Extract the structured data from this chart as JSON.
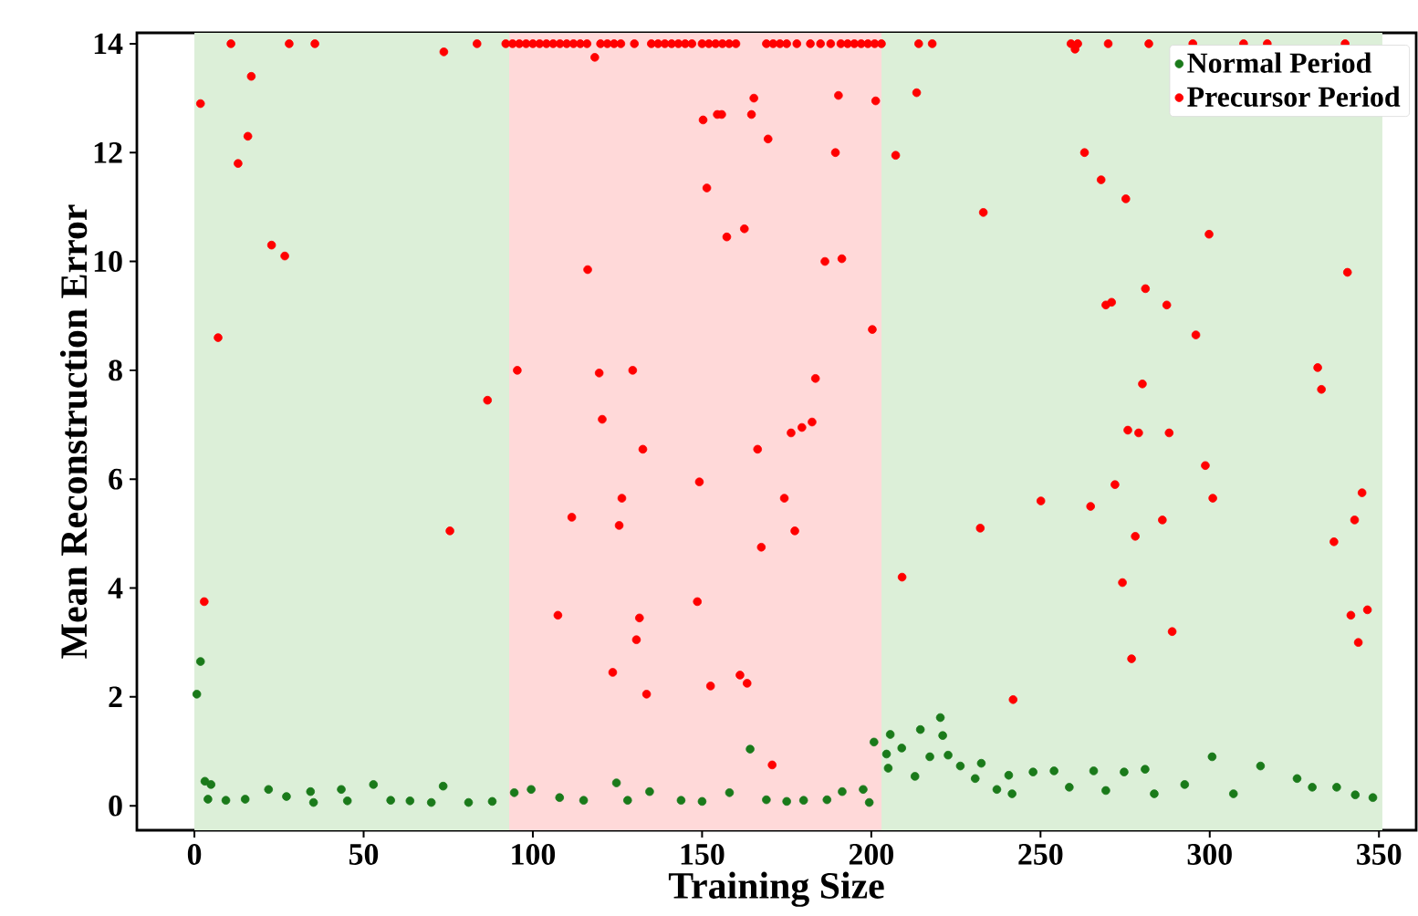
{
  "chart_data": {
    "type": "scatter",
    "xlabel": "Training Size",
    "ylabel": "Mean Reconstruction Error",
    "xlim": [
      -17,
      361
    ],
    "ylim": [
      -0.45,
      14.2
    ],
    "xticks": [
      0,
      50,
      100,
      150,
      200,
      250,
      300,
      350
    ],
    "yticks": [
      0,
      2,
      4,
      6,
      8,
      10,
      12,
      14
    ],
    "marker": "circle",
    "legend": "top right",
    "grid": false,
    "bands": [
      {
        "axis": "x",
        "from": 0,
        "to": 93,
        "color": "#dcefd8"
      },
      {
        "axis": "x",
        "from": 93,
        "to": 203,
        "color": "#ffd9d9"
      },
      {
        "axis": "x",
        "from": 203,
        "to": 351,
        "color": "#dcefd8"
      }
    ],
    "series": [
      {
        "name": "Normal Period",
        "color": "#1a7a1a",
        "x": [
          0.7,
          1.8,
          3.1,
          4,
          4.9,
          9.3,
          15,
          21.9,
          27.2,
          34.3,
          35.2,
          43.4,
          45.2,
          52.9,
          58,
          63.7,
          70,
          73.5,
          81,
          88,
          94.5,
          99.5,
          107.9,
          115,
          124.7,
          128,
          134.5,
          143.8,
          150,
          158.1,
          164.2,
          169,
          175,
          180,
          186.9,
          191.4,
          197.6,
          199.4,
          200.8,
          204.5,
          205,
          205.6,
          209,
          212.9,
          214.5,
          217.3,
          220.4,
          221.1,
          222.7,
          226.3,
          230.7,
          232.5,
          237.1,
          240.6,
          241.6,
          247.8,
          254,
          258.5,
          265.7,
          269.3,
          274.7,
          280.9,
          283.6,
          292.6,
          300.7,
          307,
          315,
          325.8,
          330.3,
          337.5,
          343,
          348.2
        ],
        "values": [
          2.05,
          2.65,
          0.45,
          0.12,
          0.39,
          0.1,
          0.12,
          0.3,
          0.17,
          0.26,
          0.06,
          0.3,
          0.09,
          0.39,
          0.1,
          0.09,
          0.06,
          0.36,
          0.06,
          0.08,
          0.24,
          0.3,
          0.15,
          0.1,
          0.42,
          0.1,
          0.26,
          0.1,
          0.08,
          0.24,
          1.04,
          0.11,
          0.08,
          0.1,
          0.11,
          0.26,
          0.3,
          0.06,
          1.17,
          0.95,
          0.69,
          1.31,
          1.06,
          0.54,
          1.4,
          0.9,
          1.62,
          1.29,
          0.93,
          0.73,
          0.5,
          0.78,
          0.3,
          0.56,
          0.22,
          0.62,
          0.64,
          0.34,
          0.64,
          0.28,
          0.62,
          0.67,
          0.22,
          0.39,
          0.9,
          0.22,
          0.73,
          0.5,
          0.34,
          0.34,
          0.2,
          0.15
        ]
      },
      {
        "name": "Precursor Period",
        "color": "#ff0000",
        "x": [
          1.8,
          2.9,
          7,
          10.8,
          12.9,
          15.8,
          16.8,
          22.8,
          26.7,
          28,
          35.6,
          73.7,
          75.5,
          83.5,
          86.6,
          92,
          94,
          95.4,
          96,
          98,
          100,
          102,
          104,
          106,
          107.4,
          108,
          110,
          111.5,
          112,
          114,
          116,
          116.2,
          118.3,
          119.6,
          120,
          120.5,
          122,
          123.6,
          124,
          125.5,
          126,
          126.3,
          129.5,
          130,
          130.6,
          131.5,
          132.5,
          133.6,
          135,
          137,
          139,
          141,
          143,
          145,
          147,
          148.6,
          149.2,
          150,
          150.3,
          151.4,
          152,
          152.5,
          154,
          154.5,
          155.8,
          156,
          157.3,
          158,
          160,
          161.2,
          162.5,
          163.3,
          164.6,
          165.3,
          166.4,
          167.5,
          169,
          169.5,
          170.7,
          171,
          173,
          174.3,
          175,
          176.3,
          177.4,
          178,
          179.5,
          182,
          182.5,
          183.5,
          185,
          186.3,
          188,
          189.4,
          190.3,
          191,
          191.3,
          193,
          195,
          197,
          199,
          200.3,
          201,
          201.3,
          203,
          207.2,
          209.1,
          213.4,
          214,
          218,
          232.2,
          233.1,
          241.9,
          250.1,
          259,
          260.2,
          261,
          263,
          264.8,
          267.9,
          269.3,
          270,
          271,
          272,
          274.2,
          275.2,
          275.8,
          276.9,
          278,
          279,
          280.1,
          281,
          282,
          286,
          287.3,
          288,
          288.9,
          295,
          295.9,
          298.7,
          299.8,
          300.9,
          310,
          317,
          331.9,
          333,
          336.7,
          340,
          340.7,
          341.7,
          342.8,
          343.9,
          345,
          346.6
        ],
        "values": [
          12.9,
          3.75,
          8.6,
          14,
          11.8,
          12.3,
          13.4,
          10.3,
          10.1,
          14,
          14,
          13.85,
          5.05,
          14,
          7.45,
          14,
          14,
          8.0,
          14,
          14,
          14,
          14,
          14,
          14,
          3.5,
          14,
          14,
          5.3,
          14,
          14,
          14,
          9.85,
          13.75,
          7.95,
          14,
          7.1,
          14,
          2.45,
          14,
          5.15,
          14,
          5.65,
          8.0,
          14,
          3.05,
          3.45,
          6.55,
          2.05,
          14,
          14,
          14,
          14,
          14,
          14,
          14,
          3.75,
          5.95,
          14,
          12.6,
          11.35,
          14,
          2.2,
          14,
          12.7,
          12.7,
          14,
          10.45,
          14,
          14,
          2.4,
          10.6,
          2.25,
          12.7,
          13.0,
          6.55,
          4.75,
          14,
          12.25,
          0.75,
          14,
          14,
          5.65,
          14,
          6.85,
          5.05,
          14,
          6.95,
          14,
          7.05,
          7.85,
          14,
          10.0,
          14,
          12.0,
          13.05,
          14,
          10.05,
          14,
          14,
          14,
          14,
          8.75,
          14,
          12.95,
          14,
          11.95,
          4.2,
          13.1,
          14,
          14,
          5.1,
          10.9,
          1.95,
          5.6,
          14,
          13.9,
          14,
          12.0,
          5.5,
          11.5,
          9.2,
          14,
          9.25,
          5.9,
          4.1,
          11.15,
          6.9,
          2.7,
          4.95,
          6.85,
          7.75,
          9.5,
          14,
          5.25,
          9.2,
          6.85,
          3.2,
          14,
          8.65,
          6.25,
          10.5,
          5.65,
          14,
          14,
          8.05,
          7.65,
          4.85,
          14,
          9.8,
          3.5,
          5.25,
          3.0,
          5.75,
          3.6
        ]
      }
    ]
  }
}
